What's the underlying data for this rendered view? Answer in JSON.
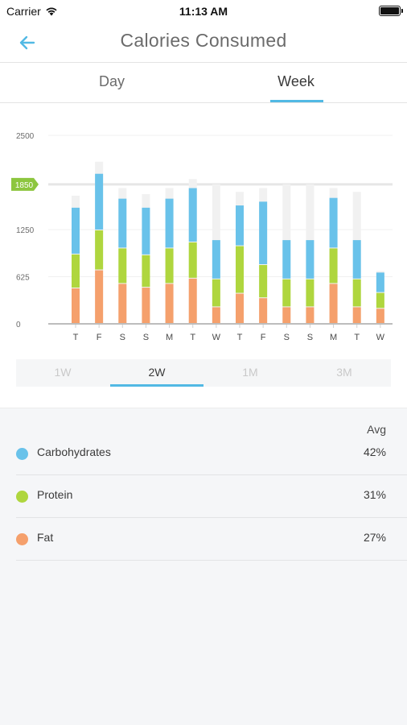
{
  "status_bar": {
    "carrier": "Carrier",
    "time": "11:13 AM"
  },
  "nav": {
    "title": "Calories Consumed"
  },
  "tabs": [
    {
      "label": "Day",
      "selected": false
    },
    {
      "label": "Week",
      "selected": true
    }
  ],
  "chart_data": {
    "type": "bar",
    "stacked": true,
    "title": "",
    "xlabel": "",
    "ylabel": "",
    "ylim": [
      0,
      2500
    ],
    "yticks": [
      0,
      625,
      1250,
      1850,
      2500
    ],
    "goal": {
      "value": 1850,
      "label": "1850"
    },
    "categories": [
      "T",
      "F",
      "S",
      "S",
      "M",
      "T",
      "W",
      "T",
      "F",
      "S",
      "S",
      "M",
      "T",
      "W"
    ],
    "series": [
      {
        "key": "fat",
        "values": [
          470,
          710,
          530,
          480,
          530,
          600,
          220,
          400,
          340,
          220,
          220,
          530,
          220,
          200
        ]
      },
      {
        "key": "protein",
        "values": [
          450,
          530,
          470,
          430,
          470,
          480,
          370,
          630,
          440,
          370,
          370,
          470,
          370,
          210
        ]
      },
      {
        "key": "carbohydrates",
        "values": [
          620,
          750,
          660,
          630,
          660,
          720,
          520,
          540,
          840,
          520,
          520,
          670,
          520,
          270
        ]
      }
    ],
    "background_totals": [
      1700,
      2150,
      1800,
      1720,
      1800,
      1920,
      1850,
      1750,
      1800,
      1850,
      1850,
      1800,
      1750,
      700
    ],
    "colors": {
      "fat": "#f5a06c",
      "protein": "#afd63e",
      "carbohydrates": "#69c2ea",
      "background": "#f1f1f1",
      "goal": "#8dc63f"
    },
    "grid": true
  },
  "range_selector": {
    "options": [
      "1W",
      "2W",
      "1M",
      "3M"
    ],
    "selected": "2W"
  },
  "summary": {
    "avg_label": "Avg",
    "rows": [
      {
        "label": "Carbohydrates",
        "value": "42%",
        "color": "#69c2ea"
      },
      {
        "label": "Protein",
        "value": "31%",
        "color": "#afd63e"
      },
      {
        "label": "Fat",
        "value": "27%",
        "color": "#f5a06c"
      }
    ]
  },
  "icons": {
    "back": "arrow-left-icon",
    "wifi": "wifi-icon",
    "battery": "battery-icon"
  }
}
